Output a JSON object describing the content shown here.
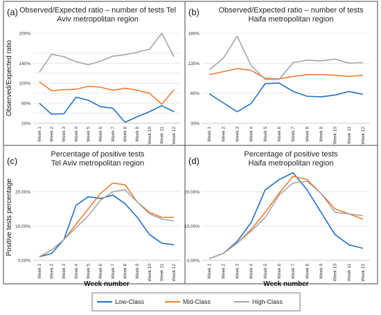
{
  "colors": {
    "low": "#1f6fc5",
    "mid": "#ed7d31",
    "high": "#a5a5a5",
    "frame": "#444444",
    "grid": "#d9d9d9"
  },
  "shared": {
    "legend": [
      "Low-Class",
      "Mid-Class",
      "High-Class"
    ],
    "ylabel_top": "Observed/Expected ratio",
    "ylabel_bottom": "Positive tests percentage",
    "xlabel": "Week number"
  },
  "chart_data": [
    {
      "type": "line",
      "panel": "(a)",
      "title_lines": [
        "Observed/Expected ratio – number of tests Tel",
        "Aviv metropolitan region"
      ],
      "categories": [
        "Week 1",
        "Week 2",
        "Week 3",
        "Week 4",
        "Week 5",
        "Week 6",
        "Week 7",
        "Week 8",
        "Week 9",
        "Week 10",
        "Week 11",
        "Week 12"
      ],
      "ylim": [
        20,
        200
      ],
      "yticks": [
        "20%",
        "",
        "60%",
        "",
        "100%",
        "",
        "140%",
        "",
        "200%"
      ],
      "ytick_values": [
        20,
        40,
        60,
        80,
        100,
        120,
        140,
        160,
        200
      ],
      "show_ylabel": true,
      "show_xlabel": false,
      "series": [
        {
          "name": "Low-Class",
          "values": [
            60,
            38,
            39,
            72,
            66,
            53,
            50,
            22,
            33,
            43,
            55,
            43
          ]
        },
        {
          "name": "Mid-Class",
          "values": [
            103,
            85,
            87,
            88,
            94,
            92,
            86,
            90,
            86,
            80,
            58,
            87
          ]
        },
        {
          "name": "High-Class",
          "values": [
            122,
            158,
            153,
            143,
            137,
            144,
            154,
            157,
            162,
            168,
            200,
            153
          ]
        }
      ]
    },
    {
      "type": "line",
      "panel": "(b)",
      "title_lines": [
        "Observed/Expected ratio – number of tests",
        "Haifa metropolitan region"
      ],
      "categories": [
        "Week 1",
        "Week 2",
        "Week 3",
        "Week 4",
        "Week 5",
        "Week 6",
        "Week 7",
        "Week 8",
        "Week 9",
        "Week 10",
        "Week 11",
        "Week 12"
      ],
      "ylim": [
        30,
        180
      ],
      "yticks": [
        "30%",
        "80%",
        "130%",
        "180%"
      ],
      "ytick_values": [
        30,
        80,
        130,
        180
      ],
      "show_ylabel": false,
      "show_xlabel": false,
      "series": [
        {
          "name": "Low-Class",
          "values": [
            79,
            64,
            49,
            63,
            96,
            97,
            83,
            75,
            74,
            77,
            83,
            78
          ]
        },
        {
          "name": "Mid-Class",
          "values": [
            111,
            116,
            121,
            118,
            105,
            104,
            108,
            111,
            111,
            110,
            108,
            110
          ]
        },
        {
          "name": "High-Class",
          "values": [
            119,
            138,
            175,
            126,
            103,
            103,
            131,
            135,
            134,
            137,
            130,
            131
          ]
        }
      ]
    },
    {
      "type": "line",
      "panel": "(c)",
      "title_lines": [
        "Percentage of positive tests",
        "Tel Aviv metropolitan region"
      ],
      "categories": [
        "Week 1",
        "Week 2",
        "Week 3",
        "Week 4",
        "Week 5",
        "Week 6",
        "Week 7",
        "Week 8",
        "Week 9",
        "Week 10",
        "Week 11",
        "Week 12"
      ],
      "ylim": [
        0,
        25
      ],
      "yticks": [
        "0.00%",
        "10.00%",
        "20.00%"
      ],
      "ytick_values": [
        0,
        10,
        20
      ],
      "show_ylabel": true,
      "show_xlabel": true,
      "series": [
        {
          "name": "Low-Class",
          "values": [
            1.0,
            2.0,
            6.0,
            16.0,
            18.5,
            18.0,
            19.0,
            16.5,
            12.5,
            7.5,
            5.0,
            4.5
          ]
        },
        {
          "name": "Mid-Class",
          "values": [
            1.0,
            3.0,
            6.0,
            10.5,
            15.0,
            19.5,
            22.5,
            22.0,
            17.0,
            14.0,
            12.5,
            12.5
          ]
        },
        {
          "name": "High-Class",
          "values": [
            1.0,
            3.0,
            6.0,
            9.5,
            13.0,
            17.5,
            20.0,
            20.5,
            17.0,
            13.5,
            12.0,
            11.5
          ]
        }
      ]
    },
    {
      "type": "line",
      "panel": "(d)",
      "title_lines": [
        "Percentage of positive tests",
        "Haifa metropolitan region"
      ],
      "categories": [
        "Week 1",
        "Week 2",
        "Week 3",
        "Week 4",
        "Week 5",
        "Week 6",
        "Week 7",
        "Week 8",
        "Week 9",
        "Week 10",
        "Week 11",
        "Week 12"
      ],
      "ylim": [
        0,
        25
      ],
      "yticks": [
        "0.00%",
        "10.00%",
        "20.00%"
      ],
      "ytick_values": [
        0,
        10,
        20
      ],
      "show_ylabel": false,
      "show_xlabel": true,
      "series": [
        {
          "name": "Low-Class",
          "values": [
            0.5,
            2.0,
            5.5,
            11.0,
            20.5,
            23.5,
            25.5,
            20.5,
            14.0,
            7.5,
            4.5,
            3.5
          ]
        },
        {
          "name": "Mid-Class",
          "values": [
            0.5,
            2.0,
            5.0,
            9.0,
            14.0,
            19.5,
            24.5,
            23.5,
            19.5,
            15.0,
            13.5,
            12.0
          ]
        },
        {
          "name": "High-Class",
          "values": [
            0.5,
            2.0,
            5.0,
            8.5,
            12.5,
            19.0,
            22.5,
            23.0,
            19.5,
            14.0,
            13.5,
            13.0
          ]
        }
      ]
    }
  ]
}
